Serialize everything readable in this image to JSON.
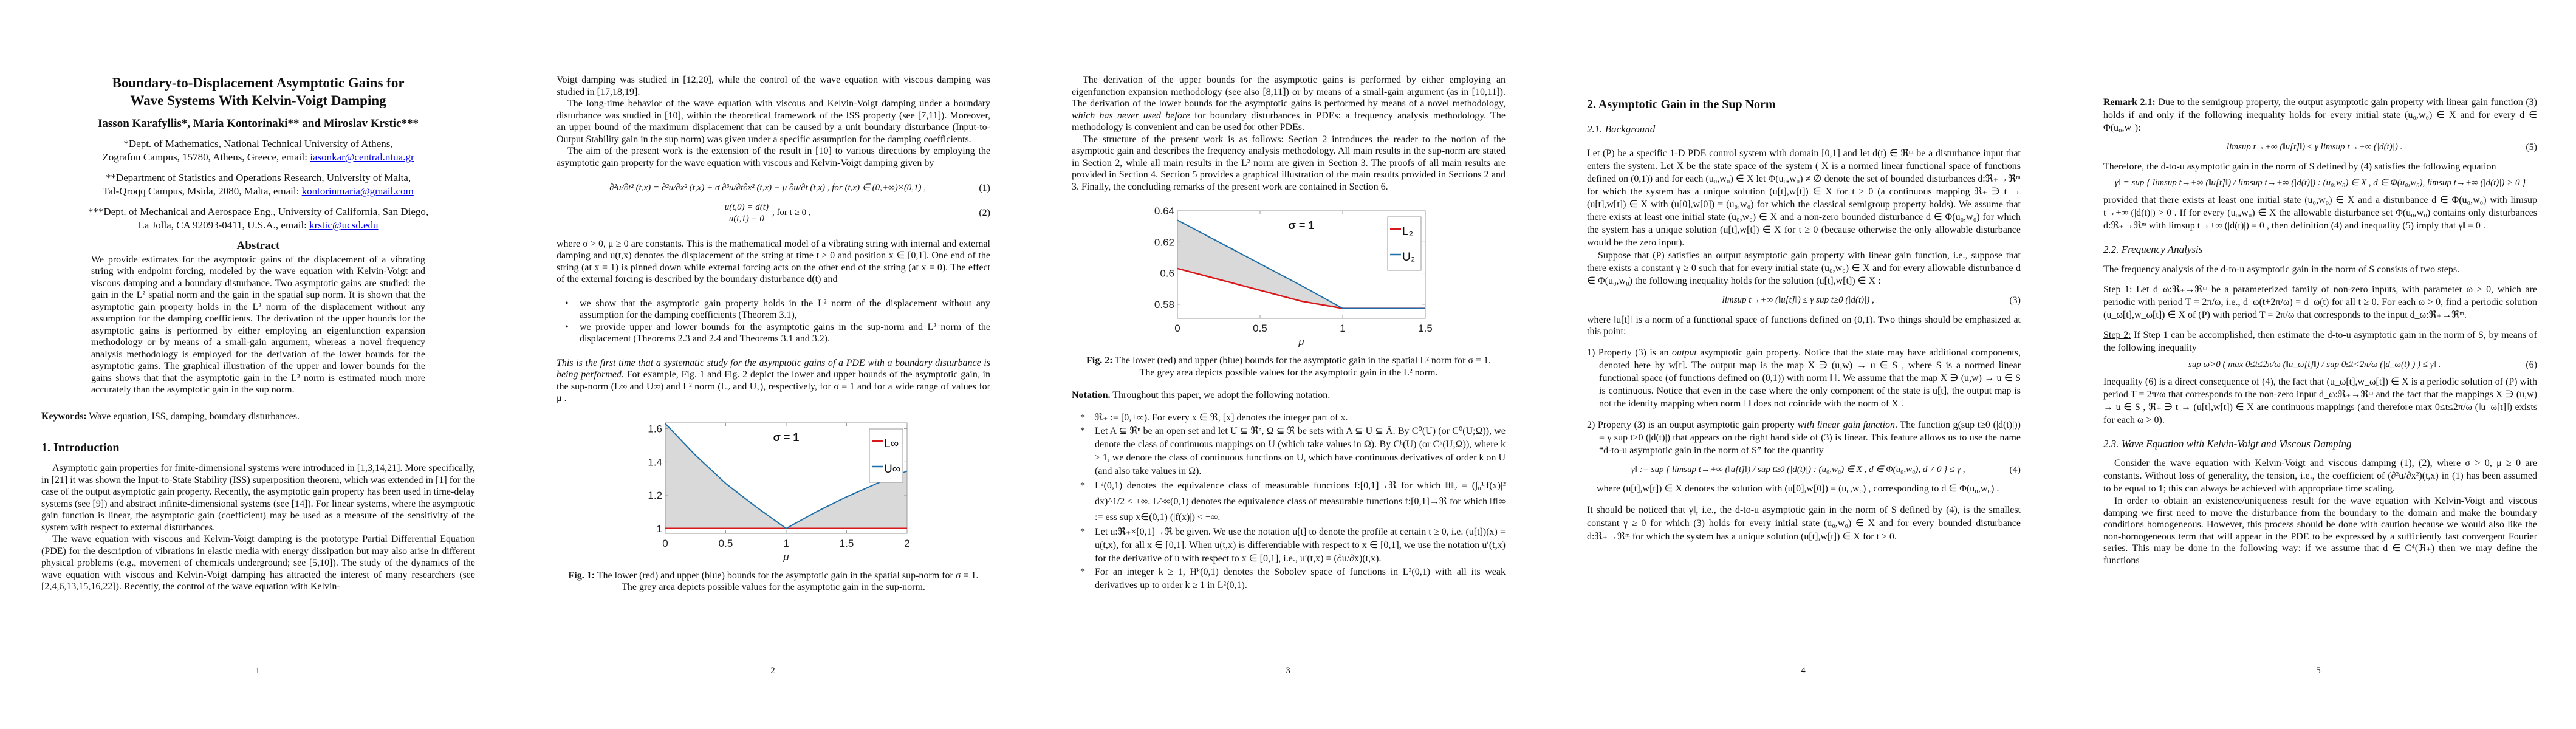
{
  "page1": {
    "title_line1": "Boundary-to-Displacement Asymptotic Gains for",
    "title_line2": "Wave Systems With Kelvin-Voigt Damping",
    "authors": "Iasson Karafyllis*, Maria Kontorinaki** and Miroslav Krstic***",
    "aff1_line1": "*Dept. of Mathematics, National Technical University of Athens,",
    "aff1_line2": "Zografou Campus, 15780, Athens, Greece, email: ",
    "aff1_email": "iasonkar@central.ntua.gr",
    "aff2_line1": "**Department of Statistics and Operations Research, University of Malta,",
    "aff2_line2": "Tal-Qroqq Campus, Msida, 2080, Malta, email: ",
    "aff2_email": "kontorinmaria@gmail.com",
    "aff3_line1": "***Dept. of Mechanical and Aerospace Eng., University of California, San Diego,",
    "aff3_line2": "La Jolla, CA 92093-0411, U.S.A., email: ",
    "aff3_email": "krstic@ucsd.edu",
    "abstract_heading": "Abstract",
    "abstract": "We provide estimates for the asymptotic gains of the displacement of a vibrating string with endpoint forcing, modeled by the wave equation with Kelvin-Voigt and viscous damping and a boundary disturbance. Two asymptotic gains are studied: the gain in the L² spatial norm and the gain in the spatial sup norm. It is shown that the asymptotic gain property holds in the L² norm of the displacement without any assumption for the damping coefficients. The derivation of the upper bounds for the asymptotic gains is performed by either employing an eigenfunction expansion methodology or by means of a small-gain argument, whereas a novel frequency analysis methodology is employed for the derivation of the lower bounds for the asymptotic gains. The graphical illustration of the upper and lower bounds for the gains shows that that the asymptotic gain in the L² norm is estimated much more accurately than the asymptotic gain in the sup norm.",
    "keywords_label": "Keywords:",
    "keywords": " Wave equation, ISS, damping, boundary disturbances.",
    "intro_heading": "1. Introduction",
    "intro_p1": "Asymptotic gain properties for finite-dimensional systems were introduced in [1,3,14,21]. More specifically, in [21] it was shown the Input-to-State Stability (ISS) superposition theorem, which was extended in [1] for the case of the output asymptotic gain property. Recently, the asymptotic gain property has been used in time-delay systems (see [9]) and abstract infinite-dimensional systems (see [14]). For linear systems, where the asymptotic gain function is linear, the asymptotic gain (coefficient) may be used as a measure of the sensitivity of the system with respect to external disturbances.",
    "intro_p2": "The wave equation with viscous and Kelvin-Voigt damping is the prototype Partial Differential Equation (PDE) for the description of vibrations in elastic media with energy dissipation but may also arise in different physical problems (e.g., movement of chemicals underground; see [5,10]). The study of the dynamics of the wave equation with viscous and Kelvin-Voigt damping has attracted the interest of many researchers (see [2,4,6,13,15,16,22]). Recently, the control of the wave equation with Kelvin-",
    "page_number": "1"
  },
  "page2": {
    "p1": "Voigt damping was studied in [12,20], while the control of the wave equation with viscous damping was studied in [17,18,19].",
    "p2": "The long-time behavior of the wave equation with viscous and Kelvin-Voigt damping under a boundary disturbance was studied in [10], within the theoretical framework of the ISS property (see [7,11]). Moreover, an upper bound of the maximum displacement that can be caused by a unit boundary disturbance (Input-to-Output Stability gain in the sup norm) was given under a specific assumption for the damping coefficients.",
    "p3": "The aim of the present work is the extension of the result in [10] to various directions by employing the asymptotic gain property for the wave equation with viscous and Kelvin-Voigt damping given by",
    "eq1": "∂²u/∂t² (t,x) = ∂²u/∂x² (t,x) + σ ∂³u/∂t∂x² (t,x) − μ ∂u/∂t (t,x) , for (t,x) ∈ (0,+∞)×(0,1) ,",
    "eq1_num": "(1)",
    "eq2_a": "u(t,0) = d(t)",
    "eq2_b": "u(t,1) = 0",
    "eq2_c": ", for t ≥ 0 ,",
    "eq2_num": "(2)",
    "p4": "where σ > 0, μ ≥ 0 are constants. This is the mathematical model of a vibrating string with internal and external damping and u(t,x) denotes the displacement of the string at time t ≥ 0 and position x ∈ [0,1]. One end of the string (at x = 1) is pinned down while external forcing acts on the other end of the string (at x = 0). The effect of the external forcing is described by the boundary disturbance d(t) and",
    "bullets": [
      "we show that the asymptotic gain property holds in the L² norm of the displacement without any assumption for the damping coefficients (Theorem 3.1),",
      "we provide upper and lower bounds for the asymptotic gains in the sup-norm and L² norm of the displacement (Theorems 2.3 and 2.4 and Theorems 3.1 and 3.2)."
    ],
    "p5_italic": "This is the first time that a systematic study for the asymptotic gains of a PDE with a boundary disturbance is being performed.",
    "p5_rest": " For example, Fig. 1 and Fig. 2 depict the lower and upper bounds of the asymptotic gain, in the sup-norm (L∞ and U∞) and L² norm (L₂ and U₂), respectively, for σ = 1 and for a wide range of values for μ .",
    "fig_label": "Fig. 1:",
    "fig_caption": " The lower (red) and upper (blue) bounds for the asymptotic gain in the spatial sup-norm for σ = 1. The grey area depicts possible values for the asymptotic gain in the sup-norm.",
    "page_number": "2"
  },
  "page3": {
    "p1_a": "The derivation of the upper bounds for the asymptotic gains is performed by either employing an eigenfunction expansion methodology (see also [8,11]) or by means of a small-gain argument (as in [10,11]). The derivation of the lower bounds for the asymptotic gains is performed by means of a novel methodology, ",
    "p1_italic": "which has never used before",
    "p1_b": " for boundary disturbances in PDEs: a frequency analysis methodology. The methodology is convenient and can be used for other PDEs.",
    "p2": "The structure of the present work is as follows: Section 2 introduces the reader to the notion of the asymptotic gain and describes the frequency analysis methodology. All main results in the sup-norm are stated in Section 2, while all main results in the L² norm are given in Section 3. The proofs of all main results are provided in Section 4. Section 5 provides a graphical illustration of the main results provided in Sections 2 and 3. Finally, the concluding remarks of the present work are contained in Section 6.",
    "fig_label": "Fig. 2:",
    "fig_caption": " The lower (red) and upper (blue) bounds for the asymptotic gain in the spatial L² norm for σ = 1. The grey area depicts possible values for the asymptotic gain in the L² norm.",
    "notation_label": "Notation.",
    "notation_text": " Throughout this paper, we adopt the following notation.",
    "items": [
      "ℜ₊ := [0,+∞). For every x ∈ ℜ, [x] denotes the integer part of x.",
      "Let A ⊆ ℜⁿ be an open set and let U ⊆ ℜⁿ, Ω ⊆ ℜ be sets with A ⊆ U ⊆ Ā. By C⁰(U) (or C⁰(U;Ω)), we denote the class of continuous mappings on U (which take values in Ω). By Cᵏ(U) (or Cᵏ(U;Ω)), where k ≥ 1, we denote the class of continuous functions on U, which have continuous derivatives of order k on U (and also take values in Ω).",
      "L²(0,1) denotes the equivalence class of measurable functions f:[0,1]→ℜ for which ‖f‖₂ = (∫₀¹|f(x)|² dx)^1/2 < +∞. L^∞(0,1) denotes the equivalence class of measurable functions f:[0,1]→ℜ for which ‖f‖∞ := ess sup x∈(0,1) (|f(x)|) < +∞.",
      "Let u:ℜ₊×[0,1]→ℜ be given. We use the notation u[t] to denote the profile at certain t ≥ 0, i.e. (u[t])(x) = u(t,x), for all x ∈ [0,1]. When u(t,x) is differentiable with respect to x ∈ [0,1], we use the notation u′(t,x) for the derivative of u with respect to x ∈ [0,1], i.e., u′(t,x) = (∂u/∂x)(t,x).",
      "For an integer k ≥ 1, Hᵏ(0,1) denotes the Sobolev space of functions in L²(0,1) with all its weak derivatives up to order k ≥ 1 in L²(0,1)."
    ],
    "bullet_symbol": "*",
    "page_number": "3"
  },
  "page4": {
    "heading": "2. Asymptotic Gain in the Sup Norm",
    "subheading": "2.1. Background",
    "p1": "Let (P) be a specific 1-D PDE control system with domain [0,1] and let d(t) ∈ ℜᵐ be a disturbance input that enters the system. Let X be the state space of the system ( X is a normed linear functional space of functions defined on (0,1)) and for each (u₀,w₀) ∈ X let Φ(u₀,w₀) ≠ ∅ denote the set of bounded disturbances d:ℜ₊→ℜᵐ for which the system has a unique solution (u[t],w[t]) ∈ X for t ≥ 0 (a continuous mapping ℜ₊ ∋ t → (u[t],w[t]) ∈ X with (u[0],w[0]) = (u₀,w₀) for which the classical semigroup property holds). We assume that there exists at least one initial state (u₀,w₀) ∈ X and a non-zero bounded disturbance d ∈ Φ(u₀,w₀) for which the system has a unique solution (u[t],w[t]) ∈ X for t ≥ 0 (because otherwise the only allowable disturbance would be the zero input).",
    "p2": "Suppose that (P) satisfies an output asymptotic gain property with linear gain function, i.e., suppose that there exists a constant γ ≥ 0 such that for every initial state (u₀,w₀) ∈ X and for every allowable disturbance d ∈ Φ(u₀,w₀) the following inequality holds for the solution (u[t],w[t]) ∈ X :",
    "eq3": "limsup t→+∞ (‖u[t]‖) ≤ γ sup t≥0 (|d(t)|) ,",
    "eq3_num": "(3)",
    "p3": "where ‖u[t]‖ is a norm of a functional space of functions defined on (0,1). Two things should be emphasized at this point:",
    "item1_a": "1) Property (3) is an ",
    "item1_italic": "output",
    "item1_b": " asymptotic gain property. Notice that the state may have additional components, denoted here by w[t]. The output map is the map X ∋ (u,w) → u ∈ S , where S is a normed linear functional space (of functions defined on (0,1)) with norm ‖ ‖. We assume that the map X ∋ (u,w) → u ∈ S is continuous. Notice that even in the case where the only component of the state is u[t], the output map is not the identity mapping when norm ‖ ‖ does not coincide with the norm of X .",
    "item2_a": "2) Property (3) is an output asymptotic gain property ",
    "item2_italic": "with linear gain function",
    "item2_b": ". The function g(sup t≥0 (|d(t)|)) = γ sup t≥0 (|d(t)|) that appears on the right hand side of (3) is linear. This feature allows us to use the name “d-to-u asymptotic gain in the norm of S” for the quantity",
    "eq4": "γ‖ := sup { limsup t→+∞ (‖u[t]‖) / sup t≥0 (|d(t)|) : (u₀,w₀) ∈ X , d ∈ Φ(u₀,w₀), d ≠ 0 } ≤ γ ,",
    "eq4_num": "(4)",
    "p4": "where (u[t],w[t]) ∈ X denotes the solution with (u[0],w[0]) = (u₀,w₀) , corresponding to d ∈ Φ(u₀,w₀) .",
    "p5": "It should be noticed that γ‖, i.e., the d-to-u asymptotic gain in the norm of S defined by (4), is the smallest constant γ ≥ 0 for which (3) holds for every initial state (u₀,w₀) ∈ X and for every bounded disturbance d:ℜ₊→ℜᵐ for which the system has a unique solution (u[t],w[t]) ∈ X for t ≥ 0.",
    "page_number": "4"
  },
  "page5": {
    "remark_label": "Remark 2.1:",
    "remark_text": " Due to the semigroup property, the output asymptotic gain property with linear gain function (3) holds if and only if the following inequality holds for every initial state (u₀,w₀) ∈ X and for every d ∈ Φ(u₀,w₀):",
    "eq5": "limsup t→+∞ (‖u[t]‖) ≤ γ limsup t→+∞ (|d(t)|) .",
    "eq5_num": "(5)",
    "p1": "Therefore, the d-to-u asymptotic gain in the norm of S defined by (4) satisfies the following equation",
    "eq_gamma": "γ‖ = sup { limsup t→+∞ (‖u[t]‖) / limsup t→+∞ (|d(t)|) : (u₀,w₀) ∈ X , d ∈ Φ(u₀,w₀), limsup t→+∞ (|d(t)|) > 0 }",
    "p2": "provided that there exists at least one initial state (u₀,w₀) ∈ X and a disturbance d ∈ Φ(u₀,w₀) with limsup t→+∞ (|d(t)|) > 0 . If for every (u₀,w₀) ∈ X the allowable disturbance set Φ(u₀,w₀) contains only disturbances d:ℜ₊→ℜᵐ with limsup t→+∞ (|d(t)|) = 0 , then definition (4) and inequality (5) imply that γ‖ = 0 .",
    "sub22": "2.2. Frequency Analysis",
    "p3": "The frequency analysis of the d-to-u asymptotic gain in the norm of S consists of two steps.",
    "step1_label": "Step 1:",
    "step1": " Let d_ω:ℜ₊→ℜᵐ be a parameterized family of non-zero inputs, with parameter ω > 0, which are periodic with period T = 2π/ω, i.e., d_ω(t+2π/ω) = d_ω(t) for all t ≥ 0. For each ω > 0, find a periodic solution (u_ω[t],w_ω[t]) ∈ X of (P) with period T = 2π/ω that corresponds to the input d_ω:ℜ₊→ℜᵐ.",
    "step2_label": "Step 2:",
    "step2": " If Step 1 can be accomplished, then estimate the d-to-u asymptotic gain in the norm of S, by means of the following inequality",
    "eq6": "sup ω>0 ( max 0≤t≤2π/ω (‖u_ω[t]‖) / sup 0≤t<2π/ω (|d_ω(t)|) ) ≤ γ‖ .",
    "eq6_num": "(6)",
    "p4": "Inequality (6) is a direct consequence of (4), the fact that (u_ω[t],w_ω[t]) ∈ X is a periodic solution of (P) with period T = 2π/ω that corresponds to the non-zero input d_ω:ℜ₊→ℜᵐ and the fact that the mappings X ∋ (u,w) → u ∈ S , ℜ₊ ∋ t → (u[t],w[t]) ∈ X are continuous mappings (and therefore max 0≤t≤2π/ω (‖u_ω[t]‖) exists for each ω > 0).",
    "sub23": "2.3. Wave Equation with Kelvin-Voigt and Viscous Damping",
    "p5": "Consider the wave equation with Kelvin-Voigt and viscous damping (1), (2), where σ > 0, μ ≥ 0 are constants. Without loss of generality, the tension, i.e., the coefficient of (∂²u/∂x²)(t,x) in (1) has been assumed to be equal to 1; this can always be achieved with appropriate time scaling.",
    "p6": "In order to obtain an existence/uniqueness result for the wave equation with Kelvin-Voigt and viscous damping we first need to move the disturbance from the boundary to the domain and make the boundary conditions homogeneous. However, this process should be done with caution because we would also like the non-homogeneous term that will appear in the PDE to be expressed by a sufficiently fast convergent Fourier series. This may be done in the following way: if we assume that d ∈ C⁴(ℜ₊) then we may define the functions",
    "page_number": "5"
  },
  "chart_data": [
    {
      "type": "line",
      "figure": "Fig. 1",
      "annotation": "σ = 1",
      "xlabel": "μ",
      "ylabel": "",
      "xlim": [
        0,
        2
      ],
      "ylim": [
        0.97,
        1.635
      ],
      "xticks": [
        "0",
        "0.5",
        "1",
        "1.5",
        "2"
      ],
      "yticks": [
        "1",
        "1.2",
        "1.4",
        "1.6"
      ],
      "x": [
        0,
        0.25,
        0.5,
        0.75,
        1,
        1.25,
        1.5,
        1.75,
        2
      ],
      "series": [
        {
          "name": "L∞",
          "color": "#d7191c",
          "values": [
            1,
            1,
            1,
            1,
            1,
            1,
            1,
            1,
            1
          ]
        },
        {
          "name": "U∞",
          "color": "#1f6fa8",
          "values": [
            1.63,
            1.44,
            1.27,
            1.13,
            1.0,
            1.1,
            1.19,
            1.27,
            1.345
          ]
        }
      ],
      "fill_between": {
        "color": "#d9d9d9"
      },
      "legend": "top-right",
      "grid": false
    },
    {
      "type": "line",
      "figure": "Fig. 2",
      "annotation": "σ = 1",
      "xlabel": "μ",
      "ylabel": "",
      "xlim": [
        0,
        1.5
      ],
      "ylim": [
        0.571,
        0.64
      ],
      "xticks": [
        "0",
        "0.5",
        "1",
        "1.5"
      ],
      "yticks": [
        "0.58",
        "0.6",
        "0.62",
        "0.64"
      ],
      "x": [
        0,
        0.25,
        0.5,
        0.75,
        1,
        1.25,
        1.5
      ],
      "series": [
        {
          "name": "L₂",
          "color": "#d7191c",
          "values": [
            0.603,
            0.596,
            0.589,
            0.582,
            0.5774,
            0.5774,
            0.5774
          ]
        },
        {
          "name": "U₂",
          "color": "#1f6fa8",
          "values": [
            0.634,
            0.62,
            0.606,
            0.592,
            0.5774,
            0.5774,
            0.5774
          ]
        }
      ],
      "fill_between": {
        "color": "#d9d9d9"
      },
      "legend": "top-right",
      "grid": false
    }
  ]
}
